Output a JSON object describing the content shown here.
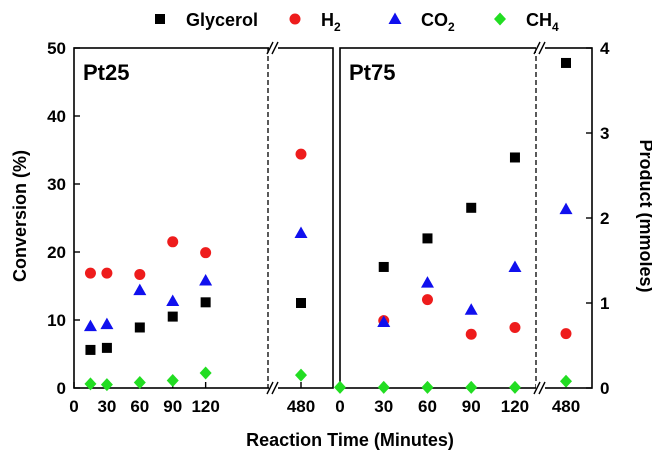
{
  "chart_data": {
    "type": "scatter",
    "xlabel": "Reaction Time (Minutes)",
    "ylabel_left": "Conversion (%)",
    "ylabel_right": "Product (mmoles)",
    "ylim_left": [
      0,
      50
    ],
    "ylim_right": [
      0,
      4
    ],
    "yticks_left": [
      "0",
      "10",
      "20",
      "30",
      "40",
      "50"
    ],
    "yticks_right": [
      "0",
      "1",
      "2",
      "3",
      "4"
    ],
    "grid": false,
    "legend_position": "top",
    "legend": [
      {
        "key": "glycerol",
        "main": "Glycerol",
        "sub": "",
        "color": "#000000",
        "marker": "square"
      },
      {
        "key": "h2",
        "main": "H",
        "sub": "2",
        "color": "#ee1c1c",
        "marker": "circle"
      },
      {
        "key": "co2",
        "main": "CO",
        "sub": "2",
        "color": "#1010ee",
        "marker": "triangle"
      },
      {
        "key": "ch4",
        "main": "CH",
        "sub": "4",
        "color": "#22dd22",
        "marker": "diamond"
      }
    ],
    "panels": [
      {
        "label": "Pt25",
        "xticks": [
          "0",
          "30",
          "60",
          "90",
          "120",
          "480"
        ],
        "series": {
          "glycerol": {
            "x": [
              15,
              30,
              60,
              90,
              120,
              480
            ],
            "y": [
              5.6,
              5.9,
              8.9,
              10.5,
              12.6,
              12.5
            ]
          },
          "h2": {
            "x": [
              15,
              30,
              60,
              90,
              120,
              480
            ],
            "y": [
              16.9,
              16.9,
              16.7,
              21.5,
              19.9,
              34.4
            ]
          },
          "co2": {
            "x": [
              15,
              30,
              60,
              90,
              120,
              480
            ],
            "y": [
              9.1,
              9.4,
              14.4,
              12.8,
              15.8,
              22.8
            ]
          },
          "ch4": {
            "x": [
              15,
              30,
              60,
              90,
              120,
              480
            ],
            "y": [
              0.6,
              0.5,
              0.8,
              1.1,
              2.2,
              1.9
            ]
          }
        }
      },
      {
        "label": "Pt75",
        "xticks": [
          "0",
          "30",
          "60",
          "90",
          "120",
          "480"
        ],
        "series": {
          "glycerol": {
            "x": [
              30,
              60,
              90,
              120,
              480
            ],
            "y": [
              17.8,
              22.0,
              26.5,
              33.9,
              47.8
            ]
          },
          "h2": {
            "x": [
              30,
              60,
              90,
              120,
              480
            ],
            "y": [
              9.9,
              13.0,
              7.9,
              8.9,
              8.0
            ]
          },
          "co2": {
            "x": [
              30,
              60,
              90,
              120,
              480
            ],
            "y": [
              9.7,
              15.5,
              11.5,
              17.8,
              26.3
            ]
          },
          "ch4": {
            "x": [
              0,
              30,
              60,
              90,
              120,
              480
            ],
            "y": [
              0.1,
              0.1,
              0.1,
              0.1,
              0.1,
              1.0
            ]
          }
        }
      }
    ]
  }
}
